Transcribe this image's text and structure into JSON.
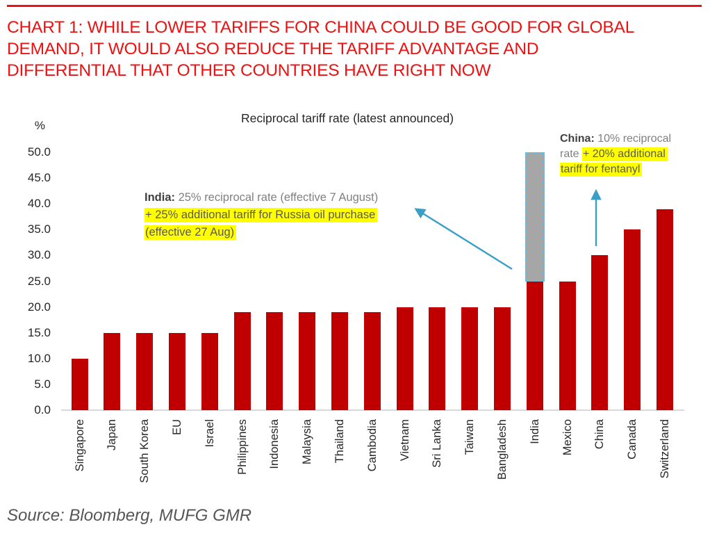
{
  "page": {
    "heading_lines": [
      "CHART 1: WHILE LOWER TARIFFS FOR CHINA COULD BE GOOD FOR GLOBAL",
      "DEMAND, IT WOULD ALSO REDUCE THE TARIFF ADVANTAGE AND",
      "DIFFERENTIAL THAT OTHER COUNTRIES HAVE RIGHT NOW"
    ],
    "source": "Source: Bloomberg, MUFG GMR"
  },
  "chart_data": {
    "type": "bar",
    "title": "Reciprocal tariff rate (latest announced)",
    "y_axis_unit": "%",
    "xlabel": "",
    "ylabel": "%",
    "ylim": [
      0,
      50
    ],
    "grid": false,
    "legend": false,
    "y_tick_values": [
      0,
      5,
      10,
      15,
      20,
      25,
      30,
      35,
      40,
      45,
      50
    ],
    "y_tick_labels": [
      "0.0",
      "5.0",
      "10.0",
      "15.0",
      "20.0",
      "25.0",
      "30.0",
      "35.0",
      "40.0",
      "45.0",
      "50.0"
    ],
    "categories": [
      "Singapore",
      "Japan",
      "South Korea",
      "EU",
      "Israel",
      "Philippines",
      "Indonesia",
      "Malaysia",
      "Thailand",
      "Cambodia",
      "Vietnam",
      "Sri Lanka",
      "Taiwan",
      "Bangladesh",
      "India",
      "Mexico",
      "China",
      "Canada",
      "Switzerland"
    ],
    "values": [
      10,
      15,
      15,
      15,
      15,
      19,
      19,
      19,
      19,
      19,
      20,
      20,
      20,
      20,
      25,
      25,
      30,
      35,
      39
    ],
    "overlay": {
      "category": "India",
      "style": "gray-dashed-extension",
      "from": 25,
      "to": 50
    },
    "annotations": [
      {
        "id": "india",
        "lines": [
          [
            {
              "text": "India:",
              "style": "bold"
            },
            {
              "text": " 25% reciprocal rate (effective 7 August)",
              "style": "plain"
            }
          ],
          [
            {
              "text": "+ 25% additional tariff for Russia oil purchase",
              "style": "highlight"
            }
          ],
          [
            {
              "text": "(effective 27 Aug)",
              "style": "highlight"
            }
          ]
        ]
      },
      {
        "id": "china",
        "lines": [
          [
            {
              "text": "China:",
              "style": "bold"
            },
            {
              "text": " 10% reciprocal",
              "style": "plain"
            }
          ],
          [
            {
              "text": "rate ",
              "style": "plain"
            },
            {
              "text": "+ 20% additional",
              "style": "highlight"
            }
          ],
          [
            {
              "text": "tariff for fentanyl",
              "style": "highlight"
            }
          ]
        ]
      }
    ],
    "colors": {
      "bar": "#C00000",
      "overlay_fill": "#A6A6A6",
      "overlay_border": "#5BC2E7",
      "arrow": "#3B9EC7",
      "highlight": "#FFFF00",
      "heading": "#EE1111",
      "baseline": "#D9D9D9"
    }
  }
}
